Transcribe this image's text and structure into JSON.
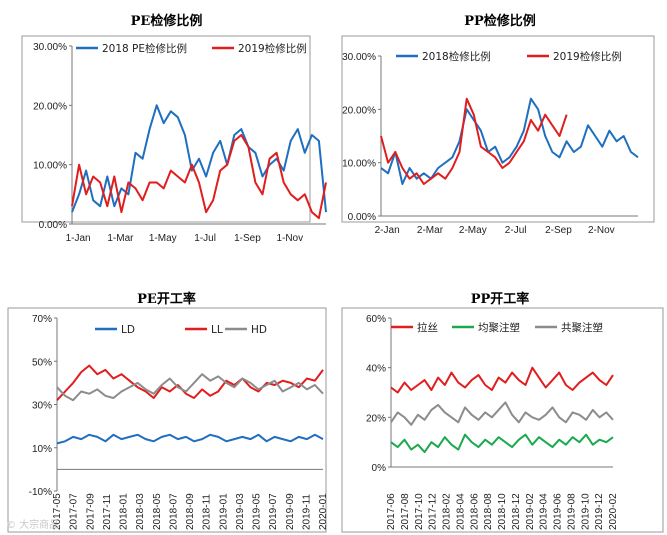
{
  "watermark": "© 大宗商品",
  "colors": {
    "blue": "#1f6fc0",
    "red": "#e11d1d",
    "gray": "#8c8c8c",
    "green": "#1aaa4e"
  },
  "chart_data": [
    {
      "id": "pe_maint",
      "type": "line",
      "title": "PE检修比例",
      "x_ticks": [
        "1-Jan",
        "1-Mar",
        "1-May",
        "1-Jul",
        "1-Sep",
        "1-Nov"
      ],
      "y_ticks": [
        "30.00%",
        "20.00%",
        "10.00%",
        "0.00%"
      ],
      "ylim": [
        0,
        30
      ],
      "legend_position": "top",
      "series": [
        {
          "name": "2018 PE检修比例",
          "color": "#1f6fc0",
          "x": [
            0,
            10,
            20,
            30,
            40,
            50,
            60,
            70,
            80,
            90,
            100,
            110,
            120,
            130,
            140,
            150,
            160,
            170,
            180,
            190,
            200,
            210,
            220,
            230,
            240,
            250,
            260,
            270,
            280,
            290,
            300,
            310,
            320,
            330,
            340,
            350,
            360
          ],
          "y": [
            2,
            5,
            9,
            4,
            3,
            8,
            3,
            6,
            5,
            12,
            11,
            16,
            20,
            17,
            19,
            18,
            15,
            9,
            11,
            8,
            12,
            14,
            10,
            15,
            16,
            13,
            12,
            8,
            10,
            11,
            9,
            14,
            16,
            12,
            15,
            14,
            2
          ]
        },
        {
          "name": "2019检修比例",
          "color": "#e11d1d",
          "x": [
            0,
            10,
            20,
            30,
            40,
            50,
            60,
            70,
            80,
            90,
            100,
            110,
            120,
            130,
            140,
            150,
            160,
            170,
            180,
            190,
            200,
            210,
            220,
            230,
            240,
            250,
            260,
            270,
            280,
            290,
            300,
            310,
            320,
            330,
            340,
            350,
            360
          ],
          "y": [
            3,
            10,
            5,
            8,
            7,
            3,
            8,
            2,
            7,
            6,
            4,
            7,
            7,
            6,
            9,
            8,
            7,
            10,
            7,
            2,
            4,
            9,
            10,
            14,
            15,
            13,
            7,
            5,
            11,
            12,
            7,
            5,
            4,
            5,
            2,
            1,
            7
          ]
        }
      ]
    },
    {
      "id": "pp_maint",
      "type": "line",
      "title": "PP检修比例",
      "x_ticks": [
        "2-Jan",
        "2-Mar",
        "2-May",
        "2-Jul",
        "2-Sep",
        "2-Nov"
      ],
      "y_ticks": [
        "30.00%",
        "20.00%",
        "10.00%",
        "0.00%"
      ],
      "ylim": [
        0,
        30
      ],
      "legend_position": "top",
      "series": [
        {
          "name": "2018检修比例",
          "color": "#1f6fc0",
          "x": [
            0,
            10,
            20,
            30,
            40,
            50,
            60,
            70,
            80,
            90,
            100,
            110,
            120,
            130,
            140,
            150,
            160,
            170,
            180,
            190,
            200,
            210,
            220,
            230,
            240,
            250,
            260,
            270,
            280,
            290,
            300,
            310,
            320,
            330,
            340,
            350,
            360
          ],
          "y": [
            9,
            8,
            12,
            6,
            9,
            7,
            8,
            7,
            9,
            10,
            11,
            14,
            20,
            18,
            16,
            12,
            13,
            10,
            11,
            13,
            16,
            22,
            20,
            15,
            12,
            11,
            14,
            12,
            13,
            17,
            15,
            13,
            16,
            14,
            15,
            12,
            11
          ]
        },
        {
          "name": "2019检修比例",
          "color": "#e11d1d",
          "x": [
            0,
            10,
            20,
            30,
            40,
            50,
            60,
            70,
            80,
            90,
            100,
            110,
            120,
            130,
            140,
            150,
            160,
            170,
            180,
            190,
            200,
            210,
            220,
            230,
            240,
            250,
            260
          ],
          "y": [
            15,
            10,
            12,
            9,
            7,
            8,
            6,
            7,
            8,
            7,
            9,
            12,
            22,
            19,
            13,
            12,
            11,
            9,
            10,
            12,
            14,
            18,
            16,
            19,
            17,
            15,
            19
          ]
        }
      ]
    },
    {
      "id": "pe_run",
      "type": "line",
      "title": "PE开工率",
      "x_ticks": [
        "2017-05",
        "2017-07",
        "2017-09",
        "2017-11",
        "2018-01",
        "2018-03",
        "2018-05",
        "2018-07",
        "2018-09",
        "2018-11",
        "2019-01",
        "2019-03",
        "2019-05",
        "2019-07",
        "2019-09",
        "2019-11",
        "2020-01"
      ],
      "y_ticks": [
        "70%",
        "50%",
        "30%",
        "10%",
        "-10%"
      ],
      "ylim": [
        -10,
        70
      ],
      "legend_position": "top",
      "series": [
        {
          "name": "LD",
          "color": "#1f6fc0",
          "x": [
            0,
            1,
            2,
            3,
            4,
            5,
            6,
            7,
            8,
            9,
            10,
            11,
            12,
            13,
            14,
            15,
            16,
            17,
            18,
            19,
            20,
            21,
            22,
            23,
            24,
            25,
            26,
            27,
            28,
            29,
            30,
            31,
            32,
            33
          ],
          "y": [
            12,
            13,
            15,
            14,
            16,
            15,
            13,
            16,
            14,
            15,
            16,
            14,
            13,
            15,
            16,
            14,
            15,
            13,
            14,
            16,
            15,
            13,
            14,
            15,
            14,
            16,
            13,
            15,
            14,
            13,
            15,
            14,
            16,
            14
          ]
        },
        {
          "name": "LL",
          "color": "#e11d1d",
          "x": [
            0,
            1,
            2,
            3,
            4,
            5,
            6,
            7,
            8,
            9,
            10,
            11,
            12,
            13,
            14,
            15,
            16,
            17,
            18,
            19,
            20,
            21,
            22,
            23,
            24,
            25,
            26,
            27,
            28,
            29,
            30,
            31,
            32,
            33
          ],
          "y": [
            32,
            36,
            40,
            45,
            48,
            44,
            46,
            42,
            44,
            41,
            38,
            36,
            33,
            38,
            36,
            39,
            35,
            33,
            37,
            34,
            36,
            41,
            39,
            42,
            38,
            36,
            40,
            39,
            41,
            40,
            38,
            42,
            41,
            46
          ]
        },
        {
          "name": "HD",
          "color": "#8c8c8c",
          "x": [
            0,
            1,
            2,
            3,
            4,
            5,
            6,
            7,
            8,
            9,
            10,
            11,
            12,
            13,
            14,
            15,
            16,
            17,
            18,
            19,
            20,
            21,
            22,
            23,
            24,
            25,
            26,
            27,
            28,
            29,
            30,
            31,
            32,
            33
          ],
          "y": [
            38,
            34,
            32,
            36,
            35,
            37,
            34,
            33,
            36,
            38,
            40,
            37,
            35,
            39,
            42,
            38,
            36,
            40,
            44,
            41,
            43,
            40,
            38,
            42,
            40,
            37,
            39,
            41,
            36,
            38,
            40,
            37,
            39,
            35
          ]
        }
      ]
    },
    {
      "id": "pp_run",
      "type": "line",
      "title": "PP开工率",
      "x_ticks": [
        "2017-06",
        "2017-08",
        "2017-10",
        "2017-12",
        "2018-02",
        "2018-04",
        "2018-06",
        "2018-08",
        "2018-10",
        "2018-12",
        "2019-02",
        "2019-04",
        "2019-06",
        "2019-08",
        "2019-10",
        "2019-12",
        "2020-02"
      ],
      "y_ticks": [
        "60%",
        "40%",
        "20%",
        "0%"
      ],
      "ylim": [
        0,
        60
      ],
      "legend_position": "top",
      "series": [
        {
          "name": "拉丝",
          "color": "#e11d1d",
          "x": [
            0,
            1,
            2,
            3,
            4,
            5,
            6,
            7,
            8,
            9,
            10,
            11,
            12,
            13,
            14,
            15,
            16,
            17,
            18,
            19,
            20,
            21,
            22,
            23,
            24,
            25,
            26,
            27,
            28,
            29,
            30,
            31,
            32,
            33
          ],
          "y": [
            32,
            30,
            34,
            31,
            33,
            35,
            31,
            36,
            33,
            38,
            34,
            32,
            35,
            37,
            33,
            31,
            36,
            34,
            38,
            35,
            33,
            40,
            36,
            32,
            35,
            38,
            33,
            31,
            34,
            36,
            38,
            35,
            33,
            37
          ]
        },
        {
          "name": "均聚注塑",
          "color": "#1aaa4e",
          "x": [
            0,
            1,
            2,
            3,
            4,
            5,
            6,
            7,
            8,
            9,
            10,
            11,
            12,
            13,
            14,
            15,
            16,
            17,
            18,
            19,
            20,
            21,
            22,
            23,
            24,
            25,
            26,
            27,
            28,
            29,
            30,
            31,
            32,
            33
          ],
          "y": [
            10,
            8,
            11,
            7,
            9,
            6,
            10,
            8,
            12,
            9,
            7,
            13,
            10,
            8,
            11,
            9,
            12,
            10,
            8,
            11,
            13,
            9,
            12,
            10,
            8,
            11,
            9,
            12,
            10,
            13,
            9,
            11,
            10,
            12
          ]
        },
        {
          "name": "共聚注塑",
          "color": "#8c8c8c",
          "x": [
            0,
            1,
            2,
            3,
            4,
            5,
            6,
            7,
            8,
            9,
            10,
            11,
            12,
            13,
            14,
            15,
            16,
            17,
            18,
            19,
            20,
            21,
            22,
            23,
            24,
            25,
            26,
            27,
            28,
            29,
            30,
            31,
            32,
            33
          ],
          "y": [
            18,
            22,
            20,
            17,
            21,
            19,
            23,
            25,
            22,
            20,
            18,
            24,
            21,
            19,
            22,
            20,
            23,
            26,
            21,
            18,
            22,
            20,
            19,
            21,
            24,
            20,
            18,
            22,
            21,
            19,
            23,
            20,
            22,
            19
          ]
        }
      ]
    }
  ]
}
